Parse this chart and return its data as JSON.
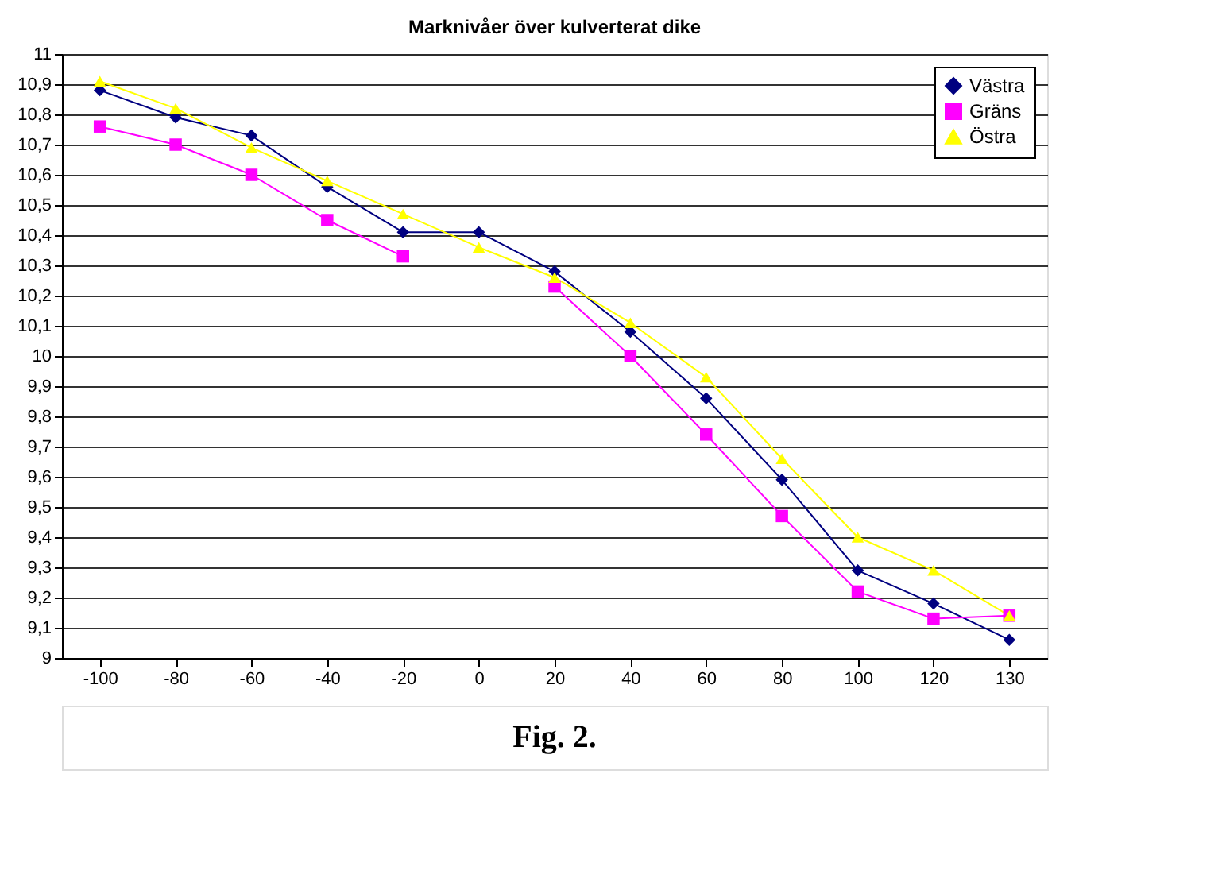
{
  "chart_data": {
    "type": "line",
    "title": "Marknivåer över kulverterat dike",
    "categories": [
      "-100",
      "-80",
      "-60",
      "-40",
      "-20",
      "0",
      "20",
      "40",
      "60",
      "80",
      "100",
      "120",
      "130"
    ],
    "series": [
      {
        "name": "Västra",
        "color": "#000080",
        "marker": "diamond",
        "values": [
          10.88,
          10.79,
          10.73,
          10.56,
          10.41,
          10.41,
          10.28,
          10.08,
          9.86,
          9.59,
          9.29,
          9.18,
          9.06
        ]
      },
      {
        "name": "Gräns",
        "color": "#ff00ff",
        "marker": "square",
        "values": [
          10.76,
          10.7,
          10.6,
          10.45,
          10.33,
          null,
          10.23,
          10.0,
          9.74,
          9.47,
          9.22,
          9.13,
          9.14
        ]
      },
      {
        "name": "Östra",
        "color": "#ffff00",
        "marker": "triangle",
        "values": [
          10.91,
          10.82,
          10.69,
          10.58,
          10.47,
          10.36,
          10.26,
          10.11,
          9.93,
          9.66,
          9.4,
          9.29,
          9.14
        ]
      }
    ],
    "ylim": [
      9,
      11
    ],
    "yticks": [
      9,
      {
        "value": 9.1,
        "label": "9,1"
      },
      {
        "value": 9.2,
        "label": "9,2"
      },
      {
        "value": 9.3,
        "label": "9,3"
      },
      {
        "value": 9.4,
        "label": "9,4"
      },
      {
        "value": 9.5,
        "label": "9,5"
      },
      {
        "value": 9.6,
        "label": "9,6"
      },
      {
        "value": 9.7,
        "label": "9,7"
      },
      {
        "value": 9.8,
        "label": "9,8"
      },
      {
        "value": 9.9,
        "label": "9,9"
      },
      10,
      {
        "value": 10.1,
        "label": "10,1"
      },
      {
        "value": 10.2,
        "label": "10,2"
      },
      {
        "value": 10.3,
        "label": "10,3"
      },
      {
        "value": 10.4,
        "label": "10,4"
      },
      {
        "value": 10.5,
        "label": "10,5"
      },
      {
        "value": 10.6,
        "label": "10,6"
      },
      {
        "value": 10.7,
        "label": "10,7"
      },
      {
        "value": 10.8,
        "label": "10,8"
      },
      {
        "value": 10.9,
        "label": "10,9"
      },
      11
    ],
    "grid": "y",
    "legend": "top right",
    "line_style": "solid",
    "annotations": [
      "Fig. 2."
    ]
  }
}
